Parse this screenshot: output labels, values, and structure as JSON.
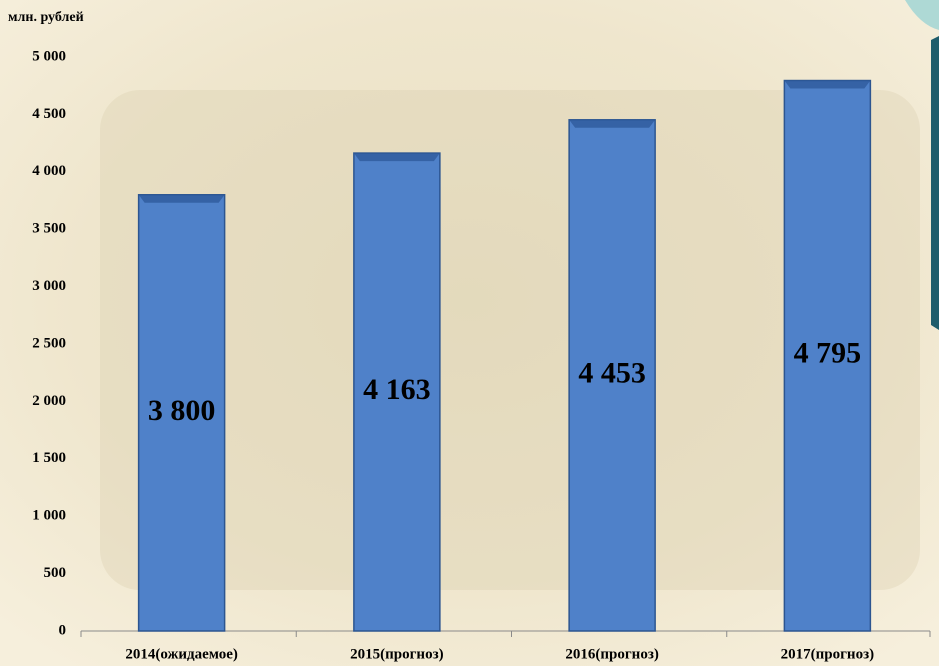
{
  "chart_data": {
    "type": "bar",
    "y_axis_label": "млн. рублей",
    "categories": [
      "2014(ожидаемое)",
      "2015(прогноз)",
      "2016(прогноз)",
      "2017(прогноз)"
    ],
    "values": [
      3800,
      4163,
      4453,
      4795
    ],
    "value_labels": [
      "3 800",
      "4 163",
      "4 453",
      "4 795"
    ],
    "color": "#4f81c9",
    "ylim": [
      0,
      5000
    ],
    "yticks": [
      0,
      500,
      {
        "value": 1000,
        "label": "1 000"
      },
      {
        "value": 1500,
        "label": "1 500"
      },
      {
        "value": 2000,
        "label": "2 000"
      },
      {
        "value": 2500,
        "label": "2 500"
      },
      {
        "value": 3000,
        "label": "3 000"
      },
      {
        "value": 3500,
        "label": "3 500"
      },
      {
        "value": 4000,
        "label": "4 000"
      },
      {
        "value": 4500,
        "label": "4 500"
      },
      {
        "value": 5000,
        "label": "5 000"
      }
    ],
    "grid": false
  }
}
